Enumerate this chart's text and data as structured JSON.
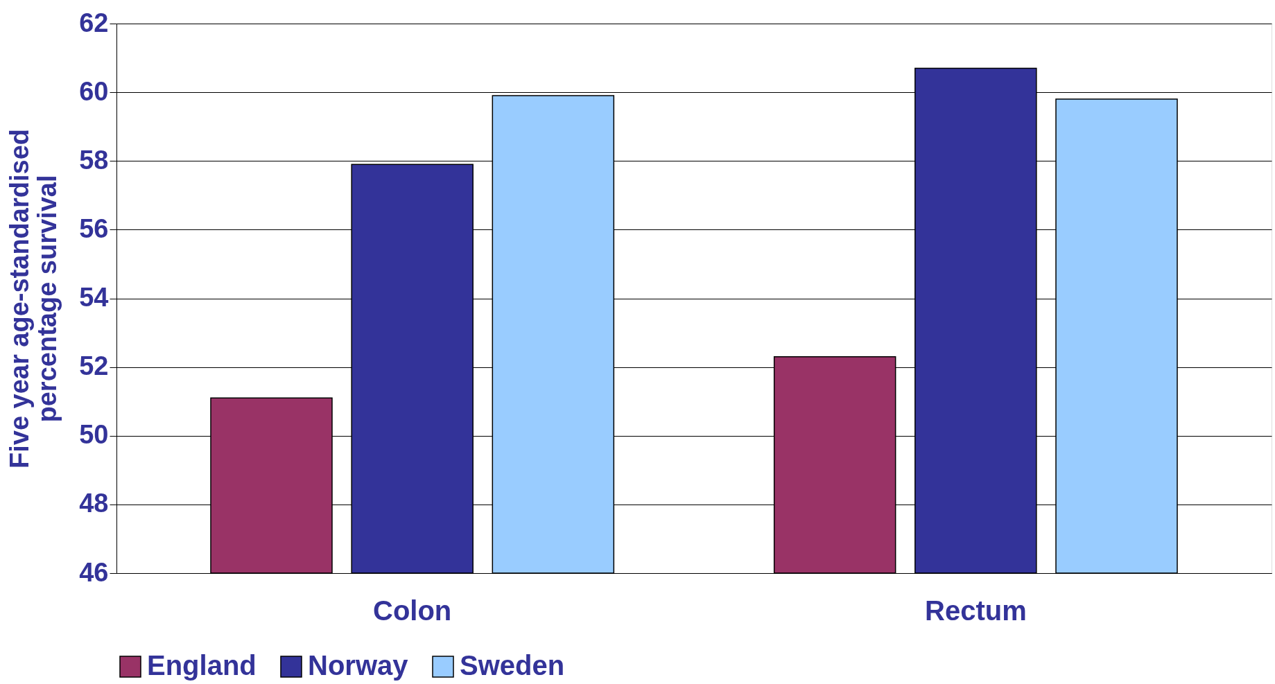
{
  "chart_data": {
    "type": "bar",
    "ylabel": "Five year age-standardised\npercentage survival",
    "categories": [
      "Colon",
      "Rectum"
    ],
    "series": [
      {
        "name": "England",
        "color": "#993366",
        "values": [
          51.1,
          52.3
        ]
      },
      {
        "name": "Norway",
        "color": "#333399",
        "values": [
          57.9,
          60.7
        ]
      },
      {
        "name": "Sweden",
        "color": "#99ccff",
        "values": [
          59.9,
          59.8
        ]
      }
    ],
    "ylim": [
      46,
      62
    ],
    "yticks": [
      46,
      48,
      50,
      52,
      54,
      56,
      58,
      60,
      62
    ],
    "grid": "y",
    "legend": "bottom"
  }
}
